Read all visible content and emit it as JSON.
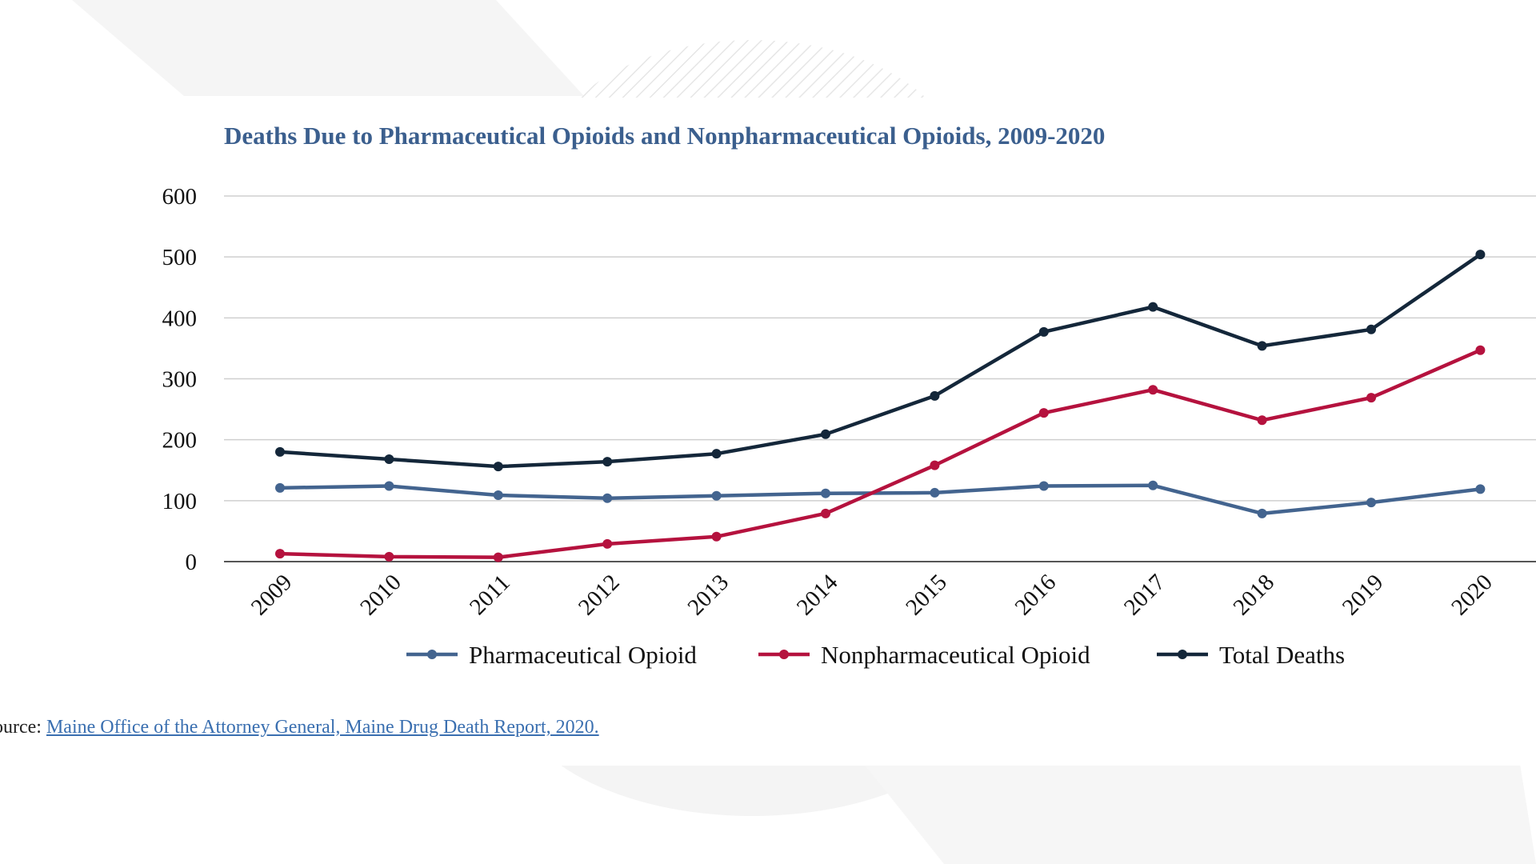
{
  "chart_data": {
    "type": "line",
    "title": "Deaths Due to Pharmaceutical Opioids and Nonpharmaceutical Opioids, 2009-2020",
    "xlabel": "",
    "ylabel": "",
    "categories": [
      "2009",
      "2010",
      "2011",
      "2012",
      "2013",
      "2014",
      "2015",
      "2016",
      "2017",
      "2018",
      "2019",
      "2020"
    ],
    "ylim": [
      0,
      600
    ],
    "yticks": [
      "0",
      "100",
      "200",
      "300",
      "400",
      "500",
      "600"
    ],
    "grid": true,
    "legend_position": "bottom",
    "series": [
      {
        "name": "Pharmaceutical Opioid",
        "color": "#43648f",
        "values": [
          121,
          124,
          109,
          104,
          108,
          112,
          113,
          124,
          125,
          79,
          97,
          119
        ]
      },
      {
        "name": "Nonpharmaceutical Opioid",
        "color": "#b5123e",
        "values": [
          13,
          8,
          7,
          29,
          41,
          79,
          158,
          244,
          282,
          232,
          269,
          347
        ]
      },
      {
        "name": "Total Deaths",
        "color": "#14273a",
        "values": [
          180,
          168,
          156,
          164,
          177,
          209,
          272,
          377,
          418,
          354,
          381,
          504
        ]
      }
    ]
  },
  "source": {
    "prefix": "ource: ",
    "link_text": "Maine Office of the Attorney General, Maine Drug Death Report, 2020."
  }
}
